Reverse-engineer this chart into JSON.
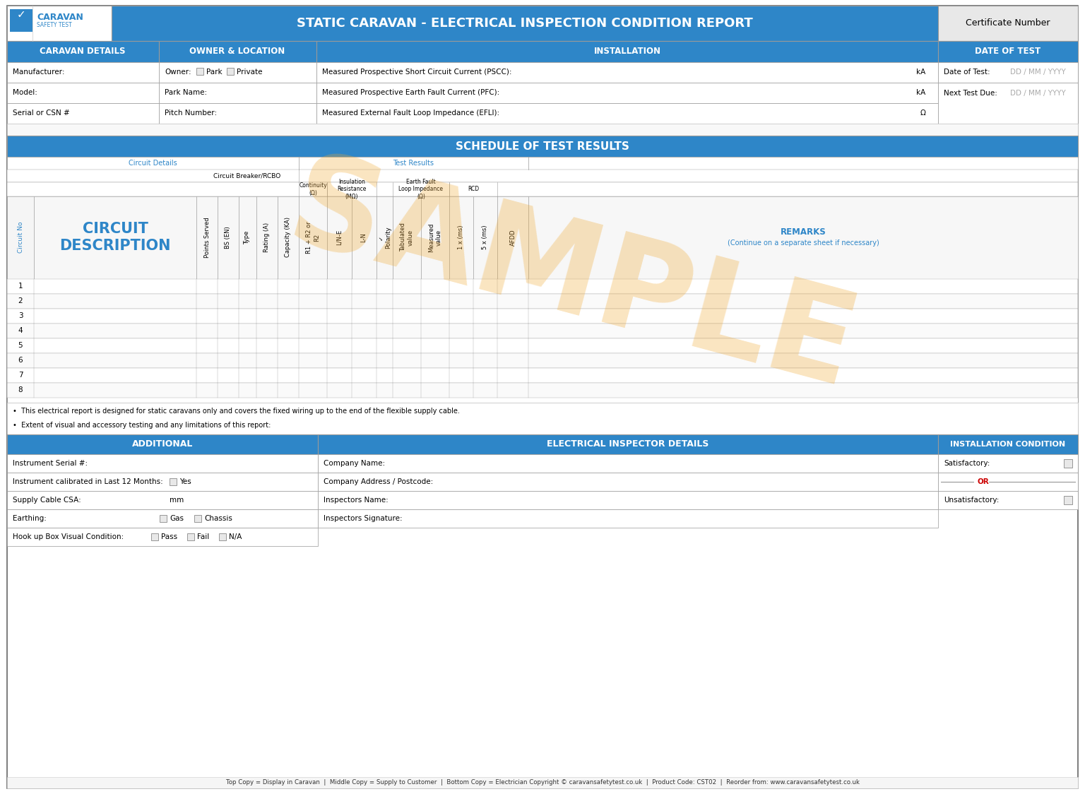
{
  "title_main": "STATIC CARAVAN - ELECTRICAL INSPECTION CONDITION REPORT",
  "cert_label": "Certificate Number",
  "blue_header": "#2E86C8",
  "gray_bg": "#f0f0f0",
  "gray_light": "#e8e8e8",
  "white": "#ffffff",
  "black": "#000000",
  "orange_sample": "#F0A830",
  "text_blue": "#2E86C8",
  "section_headers": {
    "caravan": "CARAVAN DETAILS",
    "owner": "OWNER & LOCATION",
    "installation": "INSTALLATION",
    "date": "DATE OF TEST"
  },
  "caravan_rows": [
    "Manufacturer:",
    "Model:",
    "Serial or CSN #"
  ],
  "owner_rows_plain": [
    "Park Name:",
    "Pitch Number:"
  ],
  "installation_rows": [
    "Measured Prospective Short Circuit Current (PSCC):",
    "Measured Prospective Earth Fault Current (PFC):",
    "Measured External Fault Loop Impedance (EFLI):"
  ],
  "installation_units": [
    "kA",
    "kA",
    "Ω"
  ],
  "date_rows": [
    "Date of Test:",
    "Next Test Due:"
  ],
  "date_vals": [
    "DD / MM / YYYY",
    "DD / MM / YYYY"
  ],
  "schedule_title": "SCHEDULE OF TEST RESULTS",
  "circuit_details_label": "Circuit Details",
  "test_results_label": "Test Results",
  "circuit_breaker_label": "Circuit Breaker/RCBO",
  "continuity_label": "Continuity\n(Ω)",
  "continuity_sub": "R1 + R2 or\nR2",
  "insulation_label": "Insulation\nResistance\n(MΩ)",
  "insulation_sub1": "L/N-E",
  "insulation_sub2": "L-N",
  "earth_fault_label": "Earth Fault\nLoop Impedance\n(Ω)",
  "earth_sub1": "Tabulated\nvalue",
  "earth_sub2": "Measured\nvalue",
  "polarity_label": "✓\nPolarity",
  "rcd_label": "RCD",
  "rcd_sub1": "1 x (ms)",
  "rcd_sub2": "5 x (ms)",
  "afdd_label": "AFDD",
  "remarks_title": "REMARKS",
  "remarks_sub": "(Continue on a separate sheet if necessary)",
  "circuit_rows": [
    1,
    2,
    3,
    4,
    5,
    6,
    7,
    8
  ],
  "circuit_no_label": "Circuit No",
  "circuit_desc_label": "CIRCUIT\nDESCRIPTION",
  "notes": [
    "•  This electrical report is designed for static caravans only and covers the fixed wiring up to the end of the flexible supply cable.",
    "•  Extent of visual and accessory testing and any limitations of this report:"
  ],
  "additional_title": "ADDITIONAL",
  "additional_rows": [
    "Instrument Serial #:",
    "Instrument calibrated in Last 12 Months:",
    "Supply Cable CSA:",
    "Earthing:",
    "Hook up Box Visual Condition:"
  ],
  "inspector_title": "ELECTRICAL INSPECTOR DETAILS",
  "inspector_rows": [
    "Company Name:",
    "Company Address / Postcode:",
    "Inspectors Name:",
    "Inspectors Signature:"
  ],
  "condition_title": "INSTALLATION CONDITION",
  "footer": "Top Copy = Display in Caravan  |  Middle Copy = Supply to Customer  |  Bottom Copy = Electrician Copyright © caravansafetytest.co.uk  |  Product Code: CST02  |  Reorder from: www.caravansafetytest.co.uk"
}
